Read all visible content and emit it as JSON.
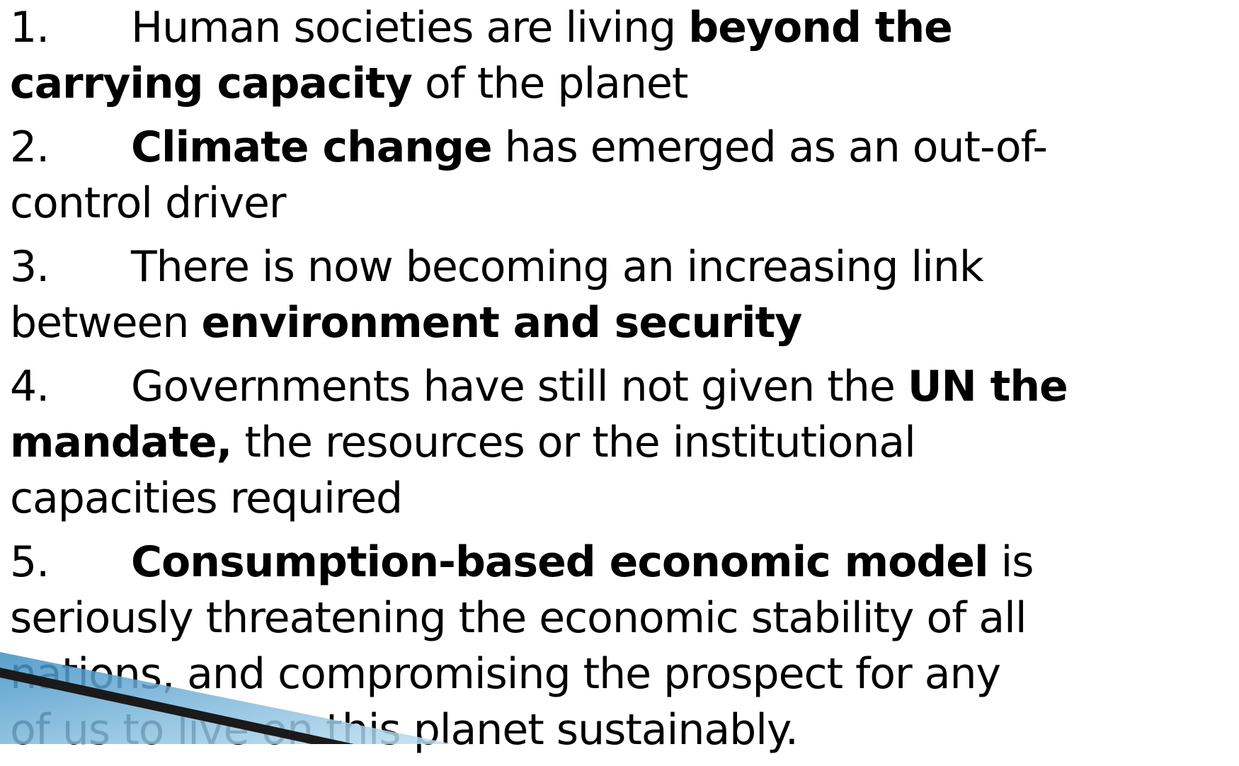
{
  "items": [
    {
      "number": "1.",
      "lines": [
        [
          {
            "text": "Human societies are living ",
            "bold": false
          },
          {
            "text": "beyond the",
            "bold": true
          }
        ],
        [
          {
            "text": "carrying capacity",
            "bold": true
          },
          {
            "text": " of the planet",
            "bold": false
          }
        ]
      ]
    },
    {
      "number": "2.",
      "lines": [
        [
          {
            "text": "Climate change",
            "bold": true
          },
          {
            "text": " has emerged as an out-of-",
            "bold": false
          }
        ],
        [
          {
            "text": "control driver",
            "bold": false
          }
        ]
      ]
    },
    {
      "number": "3.",
      "lines": [
        [
          {
            "text": "There is now becoming an increasing link",
            "bold": false
          }
        ],
        [
          {
            "text": "between ",
            "bold": false
          },
          {
            "text": "environment and security",
            "bold": true
          }
        ]
      ]
    },
    {
      "number": "4.",
      "lines": [
        [
          {
            "text": "Governments have still not given the ",
            "bold": false
          },
          {
            "text": "UN the",
            "bold": true
          }
        ],
        [
          {
            "text": "mandate,",
            "bold": true
          },
          {
            "text": " the resources or the institutional",
            "bold": false
          }
        ],
        [
          {
            "text": "capacities required",
            "bold": false
          }
        ]
      ]
    },
    {
      "number": "5.",
      "lines": [
        [
          {
            "text": "Consumption-based economic model",
            "bold": true
          },
          {
            "text": " is",
            "bold": false
          }
        ],
        [
          {
            "text": "seriously threatening the economic stability of all",
            "bold": false
          }
        ],
        [
          {
            "text": "nations, and compromising the prospect for any",
            "bold": false
          }
        ],
        [
          {
            "text": "of us to live on this planet sustainably.",
            "bold": false
          }
        ]
      ]
    }
  ]
}
